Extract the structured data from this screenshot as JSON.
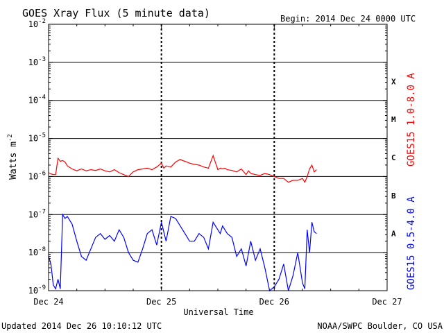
{
  "chart_data": {
    "type": "line",
    "title": "GOES Xray Flux (5 minute data)",
    "begin_label": "Begin:  2014 Dec 24 0000 UTC",
    "xlabel": "Universal Time",
    "ylabel_base": "Watts m",
    "ylabel_exp": "-2",
    "footer_left": "Updated 2014 Dec 26 10:10:12 UTC",
    "footer_right": "NOAA/SWPC Boulder, CO USA",
    "x_range_hours": [
      0,
      72
    ],
    "x_ticks": [
      {
        "hour": 0,
        "label": "Dec 24"
      },
      {
        "hour": 24,
        "label": "Dec 25"
      },
      {
        "hour": 48,
        "label": "Dec 26"
      },
      {
        "hour": 72,
        "label": "Dec 27"
      }
    ],
    "y_scale": "log",
    "y_range_log10": [
      -9,
      -2
    ],
    "y_ticks_exp": [
      -9,
      -8,
      -7,
      -6,
      -5,
      -4,
      -3,
      -2
    ],
    "y_tick_base": "10",
    "flare_classes": [
      {
        "label": "X",
        "log10": -3.5
      },
      {
        "label": "M",
        "log10": -4.5
      },
      {
        "label": "C",
        "log10": -5.5
      },
      {
        "label": "B",
        "log10": -6.5
      },
      {
        "label": "A",
        "log10": -7.5
      }
    ],
    "grid": true,
    "series": [
      {
        "name": "GOES15 1.0-8.0 A",
        "color": "#ff0000",
        "x_hours": [
          0,
          0.5,
          1,
          1.5,
          2,
          2.5,
          3,
          3.5,
          4,
          5,
          6,
          7,
          8,
          9,
          10,
          11,
          12,
          13,
          14,
          15,
          16,
          17,
          18,
          19,
          20,
          21,
          22,
          23,
          24,
          24.5,
          25,
          26,
          27,
          28,
          28.5,
          29,
          30,
          31,
          32,
          33,
          34,
          35,
          36,
          36.5,
          37,
          37.5,
          38,
          39,
          40,
          41,
          42,
          42.5,
          43,
          44,
          45,
          46,
          47,
          48,
          49,
          50,
          51,
          52,
          53,
          54,
          54.5,
          55,
          55.5,
          56,
          56.5,
          57
        ],
        "log10_y": [
          -5.9,
          -5.93,
          -5.95,
          -5.95,
          -5.52,
          -5.6,
          -5.58,
          -5.62,
          -5.72,
          -5.8,
          -5.85,
          -5.8,
          -5.85,
          -5.82,
          -5.84,
          -5.8,
          -5.85,
          -5.88,
          -5.82,
          -5.9,
          -5.95,
          -6.0,
          -5.88,
          -5.82,
          -5.8,
          -5.78,
          -5.82,
          -5.75,
          -5.65,
          -5.78,
          -5.72,
          -5.75,
          -5.62,
          -5.55,
          -5.58,
          -5.6,
          -5.65,
          -5.68,
          -5.7,
          -5.75,
          -5.78,
          -5.45,
          -5.82,
          -5.78,
          -5.8,
          -5.78,
          -5.82,
          -5.84,
          -5.88,
          -5.8,
          -5.95,
          -5.85,
          -5.92,
          -5.95,
          -5.97,
          -5.92,
          -5.95,
          -6.0,
          -6.05,
          -6.05,
          -6.15,
          -6.1,
          -6.1,
          -6.05,
          -6.15,
          -6.0,
          -5.8,
          -5.7,
          -5.88,
          -5.82
        ]
      },
      {
        "name": "GOES15 0.5-4.0 A",
        "color": "#0000ff",
        "x_hours": [
          0,
          0.5,
          1,
          1.5,
          2,
          2.5,
          3,
          3.5,
          4,
          5,
          6,
          7,
          8,
          9,
          10,
          11,
          12,
          13,
          14,
          15,
          16,
          17,
          18,
          19,
          20,
          21,
          22,
          23,
          24,
          25,
          26,
          27,
          28,
          29,
          30,
          31,
          32,
          33,
          34,
          35,
          36,
          36.5,
          37,
          38,
          39,
          40,
          41,
          42,
          43,
          44,
          45,
          46,
          47,
          48,
          49,
          50,
          51,
          52,
          53,
          54,
          54.5,
          55,
          55.5,
          56,
          56.5,
          57
        ],
        "log10_y": [
          -8.1,
          -8.3,
          -8.85,
          -8.95,
          -8.7,
          -8.95,
          -7.0,
          -7.1,
          -7.05,
          -7.25,
          -7.7,
          -8.1,
          -8.2,
          -7.9,
          -7.6,
          -7.5,
          -7.65,
          -7.55,
          -7.7,
          -7.4,
          -7.6,
          -8.0,
          -8.2,
          -8.25,
          -7.9,
          -7.5,
          -7.4,
          -7.8,
          -7.2,
          -7.7,
          -7.05,
          -7.1,
          -7.3,
          -7.5,
          -7.7,
          -7.7,
          -7.5,
          -7.6,
          -7.9,
          -7.2,
          -7.4,
          -7.5,
          -7.3,
          -7.5,
          -7.6,
          -8.1,
          -7.9,
          -8.35,
          -7.7,
          -8.2,
          -7.9,
          -8.4,
          -9.0,
          -8.9,
          -8.7,
          -8.3,
          -9.0,
          -8.6,
          -8.0,
          -8.8,
          -8.95,
          -7.4,
          -8.0,
          -7.2,
          -7.45,
          -7.5
        ]
      }
    ]
  }
}
